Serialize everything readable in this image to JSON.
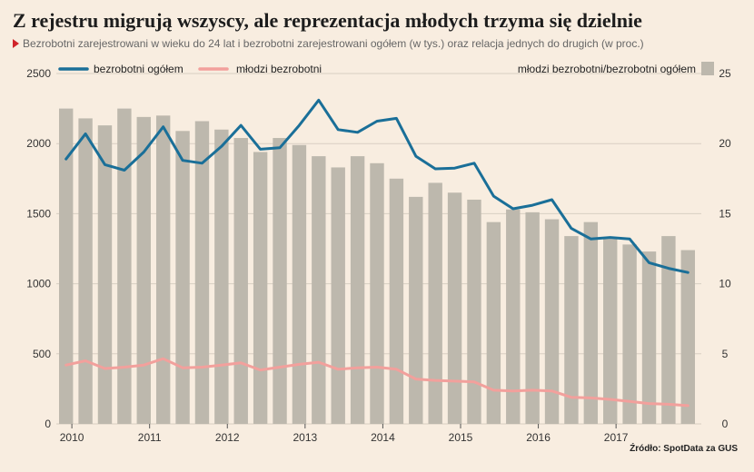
{
  "title": "Z rejestru migrują wszyscy, ale reprezentacja młodych trzyma się dzielnie",
  "subtitle": "Bezrobotni zarejestrowani w wieku do 24 lat i bezrobotni zarejestrowani ogółem (w tys.) oraz relacja jednych do drugich (w proc.)",
  "source": "Źródło: SpotData za GUS",
  "colors": {
    "background": "#f8ede0",
    "total": "#1a6f98",
    "young": "#f2a09c",
    "bars": "#bdb8ad"
  },
  "chart_data": {
    "type": "bar+line",
    "legend": {
      "total": "bezrobotni ogółem",
      "young": "młodzi bezrobotni",
      "ratio": "młodzi bezrobotni/bezrobotni ogółem"
    },
    "x_labels": [
      "2010",
      "2011",
      "2012",
      "2013",
      "2014",
      "2015",
      "2016",
      "2017"
    ],
    "left_axis": {
      "min": 0,
      "max": 2500,
      "ticks": [
        "0",
        "500",
        "1000",
        "1500",
        "2000",
        "2500"
      ]
    },
    "right_axis": {
      "min": 0,
      "max": 25,
      "ticks": [
        "0",
        "5",
        "10",
        "15",
        "20",
        "25"
      ]
    },
    "grid": true,
    "series": [
      {
        "key": "ratio",
        "axis": "right",
        "kind": "bar",
        "values": [
          22.5,
          21.8,
          21.3,
          22.5,
          21.9,
          22.0,
          20.9,
          21.6,
          21.0,
          20.4,
          19.4,
          20.4,
          19.9,
          19.1,
          18.3,
          19.1,
          18.6,
          17.5,
          16.2,
          17.2,
          16.5,
          16.0,
          14.4,
          15.3,
          15.1,
          14.6,
          13.4,
          14.4,
          13.2,
          12.8,
          12.3,
          13.4,
          12.4
        ]
      },
      {
        "key": "total",
        "axis": "left",
        "kind": "line",
        "values": [
          1890,
          2070,
          1850,
          1810,
          1940,
          2120,
          1880,
          1860,
          1980,
          2130,
          1960,
          1970,
          2130,
          2310,
          2100,
          2080,
          2160,
          2180,
          1910,
          1820,
          1825,
          1860,
          1625,
          1535,
          1560,
          1600,
          1395,
          1320,
          1330,
          1320,
          1150,
          1110,
          1080
        ]
      },
      {
        "key": "young",
        "axis": "left",
        "kind": "line",
        "values": [
          420,
          450,
          395,
          405,
          420,
          465,
          400,
          405,
          420,
          435,
          385,
          405,
          425,
          440,
          390,
          400,
          405,
          390,
          320,
          310,
          305,
          300,
          240,
          235,
          240,
          235,
          190,
          185,
          175,
          160,
          145,
          140,
          130
        ]
      }
    ]
  }
}
